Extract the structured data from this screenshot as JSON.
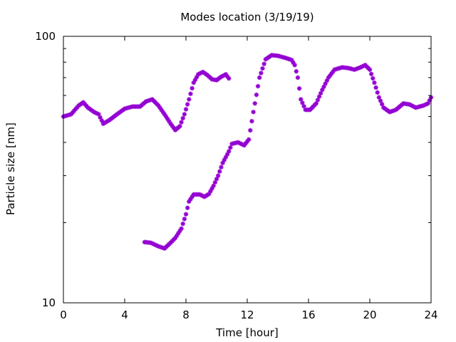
{
  "chart_data": {
    "type": "scatter",
    "title": "Modes location (3/19/19)",
    "xlabel": "Time [hour]",
    "ylabel": "Particle size [nm]",
    "xlim": [
      0,
      24
    ],
    "ylim": [
      10,
      100
    ],
    "yscale": "log",
    "grid": false,
    "x_ticks": [
      0,
      4,
      8,
      12,
      16,
      20,
      24
    ],
    "x_tick_labels": [
      "0",
      "4",
      "8",
      "12",
      "16",
      "20",
      "24"
    ],
    "y_ticks": [
      10,
      100
    ],
    "y_tick_labels": [
      "10",
      "100"
    ],
    "marker": "asterisk",
    "color": "#9400d3",
    "series": [
      {
        "key": "mode1",
        "knots": [
          [
            0.0,
            50.0
          ],
          [
            0.5,
            51.0
          ],
          [
            1.0,
            55.0
          ],
          [
            1.3,
            56.5
          ],
          [
            1.6,
            54.0
          ],
          [
            2.0,
            52.0
          ],
          [
            2.3,
            51.0
          ],
          [
            2.6,
            47.0
          ],
          [
            3.0,
            48.5
          ],
          [
            3.5,
            51.0
          ],
          [
            4.0,
            53.5
          ],
          [
            4.5,
            54.5
          ],
          [
            5.0,
            54.5
          ],
          [
            5.4,
            57.0
          ],
          [
            5.8,
            58.0
          ],
          [
            6.2,
            55.0
          ],
          [
            6.7,
            50.0
          ],
          [
            7.0,
            47.0
          ],
          [
            7.3,
            44.5
          ],
          [
            7.6,
            46.0
          ],
          [
            7.9,
            51.0
          ],
          [
            8.2,
            58.0
          ],
          [
            8.5,
            67.0
          ],
          [
            8.8,
            72.0
          ],
          [
            9.1,
            73.5
          ],
          [
            9.4,
            71.5
          ],
          [
            9.7,
            69.0
          ],
          [
            10.0,
            68.5
          ],
          [
            10.3,
            70.5
          ],
          [
            10.6,
            72.0
          ],
          [
            10.8,
            69.5
          ]
        ]
      },
      {
        "key": "mode2",
        "knots": [
          [
            5.3,
            16.9
          ],
          [
            5.7,
            16.8
          ],
          [
            6.2,
            16.3
          ],
          [
            6.6,
            16.0
          ],
          [
            6.9,
            16.6
          ],
          [
            7.3,
            17.5
          ],
          [
            7.7,
            19.0
          ],
          [
            8.0,
            21.5
          ],
          [
            8.2,
            24.0
          ],
          [
            8.5,
            25.5
          ],
          [
            8.9,
            25.5
          ],
          [
            9.2,
            25.0
          ],
          [
            9.5,
            25.6
          ],
          [
            9.8,
            27.5
          ],
          [
            10.1,
            30.0
          ],
          [
            10.4,
            33.5
          ],
          [
            10.8,
            37.0
          ],
          [
            11.0,
            39.5
          ],
          [
            11.4,
            40.0
          ],
          [
            11.8,
            39.0
          ],
          [
            12.1,
            41.0
          ],
          [
            12.4,
            52.0
          ],
          [
            12.8,
            70.0
          ],
          [
            13.2,
            82.0
          ],
          [
            13.6,
            85.0
          ],
          [
            14.0,
            84.5
          ],
          [
            14.5,
            83.0
          ],
          [
            14.9,
            81.5
          ],
          [
            15.1,
            78.0
          ],
          [
            15.3,
            70.0
          ],
          [
            15.5,
            58.0
          ],
          [
            15.8,
            53.0
          ],
          [
            16.1,
            53.0
          ],
          [
            16.5,
            56.0
          ],
          [
            16.9,
            63.0
          ],
          [
            17.3,
            70.0
          ],
          [
            17.7,
            75.0
          ],
          [
            18.2,
            76.5
          ],
          [
            18.6,
            76.0
          ],
          [
            19.0,
            75.0
          ],
          [
            19.4,
            76.5
          ],
          [
            19.7,
            78.0
          ],
          [
            20.0,
            75.0
          ],
          [
            20.3,
            67.0
          ],
          [
            20.6,
            59.0
          ],
          [
            20.9,
            54.0
          ],
          [
            21.3,
            52.0
          ],
          [
            21.7,
            53.0
          ],
          [
            22.2,
            56.0
          ],
          [
            22.6,
            55.5
          ],
          [
            23.0,
            54.0
          ],
          [
            23.5,
            55.0
          ],
          [
            23.8,
            56.0
          ],
          [
            24.0,
            59.0
          ]
        ]
      }
    ]
  }
}
